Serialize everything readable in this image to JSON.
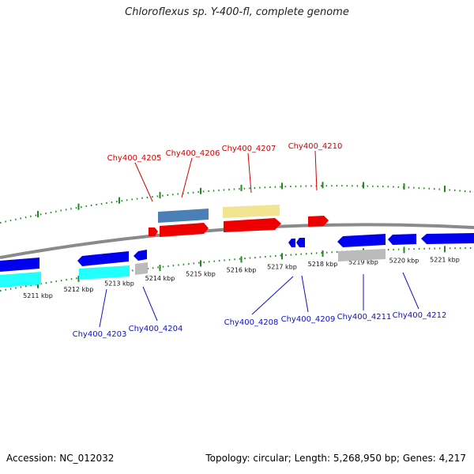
{
  "title": "Chloroflexus sp. Y-400-fl, complete genome",
  "footer": {
    "accession": "Accession: NC_012032",
    "summary": "Topology: circular; Length: 5,268,950 bp; Genes: 4,217"
  },
  "colors": {
    "backbone": "#8a8a8a",
    "ticks": "#1e8a1e",
    "forward_label": "#d40000",
    "reverse_label": "#1010c8"
  },
  "scale_labels": [
    "5211 kbp",
    "5212 kbp",
    "5213 kbp",
    "5214 kbp",
    "5215 kbp",
    "5216 kbp",
    "5217 kbp",
    "5218 kbp",
    "5219 kbp",
    "5220 kbp",
    "5221 kbp"
  ],
  "gene_labels": {
    "forward": [
      "Chy400_4205",
      "Chy400_4206",
      "Chy400_4207",
      "Chy400_4210"
    ],
    "reverse": [
      "Chy400_4203",
      "Chy400_4204",
      "Chy400_4208",
      "Chy400_4209",
      "Chy400_4211",
      "Chy400_4212"
    ]
  }
}
